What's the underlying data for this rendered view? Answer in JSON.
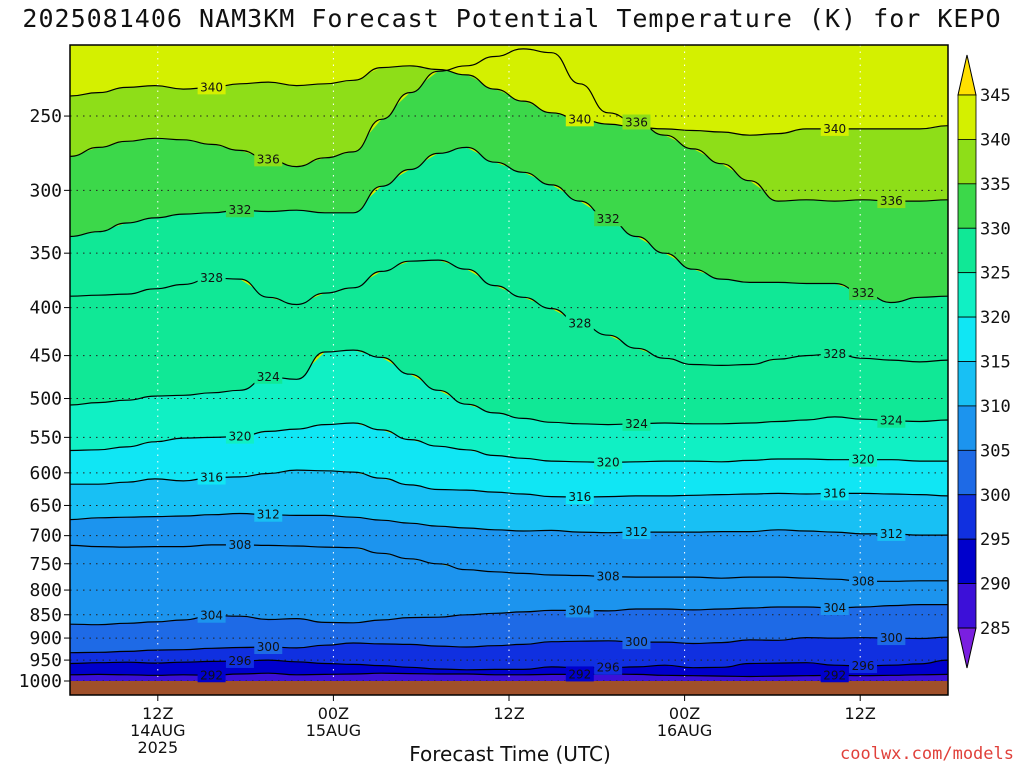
{
  "chart_data": {
    "type": "heatmap",
    "title": "2025081406 NAM3KM Forecast Potential Temperature (K) for KEPO",
    "xlabel": "Forecast Time (UTC)",
    "ylabel": "",
    "y_axis": {
      "ticks": [
        250,
        300,
        350,
        400,
        450,
        500,
        550,
        600,
        650,
        700,
        750,
        800,
        850,
        900,
        950,
        1000
      ],
      "range": [
        1000,
        210
      ],
      "scale": "log-pressure"
    },
    "x_axis": {
      "ticks": [
        {
          "hours": 6,
          "lines": [
            "12Z",
            "14AUG",
            "2025"
          ]
        },
        {
          "hours": 18,
          "lines": [
            "00Z",
            "15AUG"
          ]
        },
        {
          "hours": 30,
          "lines": [
            "12Z"
          ]
        },
        {
          "hours": 42,
          "lines": [
            "00Z",
            "16AUG"
          ]
        },
        {
          "hours": 54,
          "lines": [
            "12Z"
          ]
        }
      ],
      "range": [
        0,
        60
      ]
    },
    "colorbar": {
      "labels": [
        285,
        290,
        295,
        300,
        305,
        310,
        315,
        320,
        325,
        330,
        335,
        340,
        345
      ],
      "colors": [
        "#7a1fe0",
        "#3c10d8",
        "#0000cc",
        "#1030e0",
        "#1e6ae6",
        "#1c94ee",
        "#18c0f4",
        "#10e6f4",
        "#10f0c4",
        "#10e896",
        "#3cd84a",
        "#8ede18",
        "#d4f000",
        "#ffe000"
      ]
    },
    "contours": [
      {
        "value": 292,
        "p": [
          985,
          984,
          985,
          986,
          985,
          986,
          983,
          981,
          985,
          984,
          983,
          981,
          982,
          983,
          983,
          985,
          985,
          984,
          984,
          983,
          984,
          986,
          987,
          988,
          989,
          988,
          987,
          986,
          987,
          986,
          985,
          984
        ]
      },
      {
        "value": 296,
        "p": [
          958,
          956,
          955,
          957,
          955,
          953,
          952,
          950,
          954,
          958,
          960,
          963,
          967,
          971,
          973,
          972,
          972,
          966,
          968,
          968,
          966,
          962,
          968,
          967,
          958,
          957,
          956,
          962,
          964,
          962,
          959,
          950
        ]
      },
      {
        "value": 300,
        "p": [
          933,
          932,
          930,
          927,
          926,
          923,
          921,
          920,
          922,
          916,
          911,
          913,
          914,
          918,
          920,
          917,
          914,
          908,
          907,
          906,
          909,
          909,
          912,
          910,
          904,
          905,
          899,
          900,
          899,
          900,
          901,
          898
        ]
      },
      {
        "value": 304,
        "p": [
          870,
          871,
          868,
          865,
          861,
          852,
          853,
          860,
          858,
          866,
          867,
          861,
          856,
          855,
          850,
          847,
          844,
          841,
          841,
          842,
          838,
          838,
          840,
          838,
          836,
          834,
          834,
          836,
          834,
          831,
          829,
          829
        ]
      },
      {
        "value": 308,
        "p": [
          717,
          719,
          720,
          719,
          719,
          716,
          716,
          717,
          718,
          720,
          721,
          731,
          741,
          750,
          761,
          765,
          768,
          771,
          772,
          774,
          775,
          775,
          775,
          777,
          775,
          775,
          777,
          779,
          783,
          783,
          782,
          782
        ]
      },
      {
        "value": 312,
        "p": [
          673,
          670,
          669,
          668,
          667,
          665,
          663,
          665,
          666,
          666,
          669,
          674,
          679,
          684,
          687,
          690,
          692,
          691,
          694,
          695,
          694,
          694,
          694,
          693,
          693,
          690,
          692,
          694,
          697,
          697,
          699,
          699
        ]
      },
      {
        "value": 316,
        "p": [
          617,
          617,
          614,
          609,
          612,
          607,
          606,
          601,
          596,
          597,
          599,
          608,
          618,
          625,
          626,
          629,
          632,
          636,
          637,
          636,
          635,
          635,
          634,
          633,
          632,
          631,
          632,
          631,
          631,
          632,
          633,
          635
        ]
      },
      {
        "value": 320,
        "p": [
          568,
          567,
          563,
          556,
          551,
          550,
          549,
          542,
          539,
          533,
          531,
          540,
          553,
          562,
          567,
          575,
          579,
          583,
          584,
          585,
          584,
          583,
          583,
          584,
          582,
          580,
          580,
          581,
          581,
          581,
          583,
          583
        ]
      },
      {
        "value": 324,
        "p": [
          508,
          505,
          502,
          497,
          496,
          493,
          490,
          474,
          477,
          446,
          444,
          452,
          471,
          490,
          507,
          518,
          525,
          530,
          532,
          533,
          532,
          531,
          532,
          532,
          531,
          529,
          527,
          523,
          526,
          528,
          529,
          527
        ]
      },
      {
        "value": 328,
        "p": [
          389,
          388,
          387,
          382,
          378,
          372,
          373,
          390,
          397,
          386,
          381,
          366,
          357,
          356,
          364,
          379,
          390,
          401,
          416,
          428,
          442,
          453,
          460,
          461,
          460,
          454,
          450,
          448,
          453,
          455,
          457,
          455
        ]
      },
      {
        "value": 332,
        "p": [
          336,
          332,
          325,
          321,
          318,
          317,
          315,
          316,
          315,
          317,
          317,
          297,
          285,
          274,
          270,
          280,
          287,
          296,
          308,
          322,
          336,
          350,
          364,
          373,
          376,
          376,
          377,
          377,
          386,
          395,
          390,
          389
        ]
      },
      {
        "value": 336,
        "p": [
          276,
          270,
          266,
          264,
          265,
          268,
          272,
          278,
          283,
          277,
          273,
          252,
          236,
          224,
          221,
          216,
          212,
          214,
          231,
          248,
          254,
          262,
          271,
          281,
          293,
          308,
          307,
          308,
          307,
          308,
          308,
          307
        ]
      },
      {
        "value": 340,
        "p": [
          238,
          236,
          233,
          232,
          234,
          233,
          231,
          230,
          232,
          231,
          229,
          222,
          221,
          223,
          226,
          234,
          241,
          248,
          252,
          255,
          257,
          258,
          259,
          260,
          262,
          261,
          258,
          258,
          258,
          258,
          258,
          256
        ]
      }
    ]
  }
}
